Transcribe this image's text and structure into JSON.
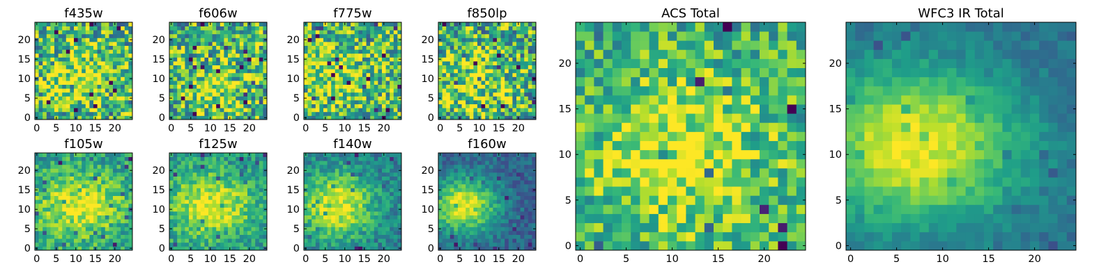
{
  "figure": {
    "background": "#ffffff",
    "colormap": "viridis"
  },
  "chart_data": [
    {
      "id": "f435w",
      "type": "heatmap",
      "title": "f435w",
      "grid": false,
      "xticks": [
        "0",
        "5",
        "10",
        "15",
        "20"
      ],
      "yticks": [
        "0",
        "5",
        "10",
        "15",
        "20"
      ],
      "xlim": [
        -0.5,
        24.5
      ],
      "ylim": [
        -0.5,
        24.5
      ],
      "shape": [
        25,
        25
      ],
      "pattern": {
        "peak_x": 12,
        "peak_y": 10,
        "spread_x": 6,
        "spread_y": 5,
        "peak": 0.9,
        "base": 0.66,
        "noise": 0.38,
        "seed": 11
      }
    },
    {
      "id": "f606w",
      "type": "heatmap",
      "title": "f606w",
      "grid": false,
      "xticks": [
        "0",
        "5",
        "10",
        "15",
        "20"
      ],
      "yticks": [
        "0",
        "5",
        "10",
        "15",
        "20"
      ],
      "xlim": [
        -0.5,
        24.5
      ],
      "ylim": [
        -0.5,
        24.5
      ],
      "shape": [
        25,
        25
      ],
      "pattern": {
        "peak_x": 11,
        "peak_y": 7,
        "spread_x": 6,
        "spread_y": 5,
        "peak": 0.88,
        "base": 0.64,
        "noise": 0.38,
        "seed": 23
      }
    },
    {
      "id": "f775w",
      "type": "heatmap",
      "title": "f775w",
      "grid": false,
      "xticks": [
        "0",
        "5",
        "10",
        "15",
        "20"
      ],
      "yticks": [
        "0",
        "5",
        "10",
        "15",
        "20"
      ],
      "xlim": [
        -0.5,
        24.5
      ],
      "ylim": [
        -0.5,
        24.5
      ],
      "shape": [
        25,
        25
      ],
      "pattern": {
        "peak_x": 6,
        "peak_y": 11,
        "spread_x": 7,
        "spread_y": 5,
        "peak": 0.9,
        "base": 0.66,
        "noise": 0.36,
        "seed": 37
      }
    },
    {
      "id": "f850lp",
      "type": "heatmap",
      "title": "f850lp",
      "grid": false,
      "xticks": [
        "0",
        "5",
        "10",
        "15",
        "20"
      ],
      "yticks": [
        "0",
        "5",
        "10",
        "15",
        "20"
      ],
      "xlim": [
        -0.5,
        24.5
      ],
      "ylim": [
        -0.5,
        24.5
      ],
      "shape": [
        25,
        25
      ],
      "pattern": {
        "peak_x": 9,
        "peak_y": 9,
        "spread_x": 7,
        "spread_y": 6,
        "peak": 0.86,
        "base": 0.64,
        "noise": 0.4,
        "seed": 53
      }
    },
    {
      "id": "f105w",
      "type": "heatmap",
      "title": "f105w",
      "grid": false,
      "xticks": [
        "0",
        "5",
        "10",
        "15",
        "20"
      ],
      "yticks": [
        "0",
        "5",
        "10",
        "15",
        "20"
      ],
      "xlim": [
        -0.5,
        24.5
      ],
      "ylim": [
        -0.5,
        24.5
      ],
      "shape": [
        25,
        25
      ],
      "pattern": {
        "peak_x": 11,
        "peak_y": 11,
        "spread_x": 8,
        "spread_y": 6,
        "peak": 0.96,
        "base": 0.55,
        "noise": 0.2,
        "seed": 71
      }
    },
    {
      "id": "f125w",
      "type": "heatmap",
      "title": "f125w",
      "grid": false,
      "xticks": [
        "0",
        "5",
        "10",
        "15",
        "20"
      ],
      "yticks": [
        "0",
        "5",
        "10",
        "15",
        "20"
      ],
      "xlim": [
        -0.5,
        24.5
      ],
      "ylim": [
        -0.5,
        24.5
      ],
      "shape": [
        25,
        25
      ],
      "pattern": {
        "peak_x": 10,
        "peak_y": 11,
        "spread_x": 8,
        "spread_y": 6,
        "peak": 0.96,
        "base": 0.52,
        "noise": 0.18,
        "seed": 89
      }
    },
    {
      "id": "f140w",
      "type": "heatmap",
      "title": "f140w",
      "grid": false,
      "xticks": [
        "0",
        "5",
        "10",
        "15",
        "20"
      ],
      "yticks": [
        "0",
        "5",
        "10",
        "15",
        "20"
      ],
      "xlim": [
        -0.5,
        24.5
      ],
      "ylim": [
        -0.5,
        24.5
      ],
      "shape": [
        25,
        25
      ],
      "pattern": {
        "peak_x": 8,
        "peak_y": 11,
        "spread_x": 7,
        "spread_y": 6,
        "peak": 0.97,
        "base": 0.42,
        "noise": 0.16,
        "seed": 97
      }
    },
    {
      "id": "f160w",
      "type": "heatmap",
      "title": "f160w",
      "grid": false,
      "xticks": [
        "0",
        "5",
        "10",
        "15",
        "20"
      ],
      "yticks": [
        "0",
        "5",
        "10",
        "15",
        "20"
      ],
      "xlim": [
        -0.5,
        24.5
      ],
      "ylim": [
        -0.5,
        24.5
      ],
      "shape": [
        25,
        25
      ],
      "pattern": {
        "peak_x": 6,
        "peak_y": 11,
        "spread_x": 6,
        "spread_y": 5,
        "peak": 0.98,
        "base": 0.32,
        "noise": 0.13,
        "seed": 131
      }
    },
    {
      "id": "acs-total",
      "type": "heatmap",
      "title": "ACS Total",
      "grid": false,
      "xticks": [
        "0",
        "5",
        "10",
        "15",
        "20"
      ],
      "yticks": [
        "0",
        "5",
        "10",
        "15",
        "20"
      ],
      "xlim": [
        -0.5,
        24.5
      ],
      "ylim": [
        -0.5,
        24.5
      ],
      "shape": [
        25,
        25
      ],
      "pattern": {
        "peak_x": 11,
        "peak_y": 10,
        "spread_x": 8,
        "spread_y": 7,
        "peak": 0.92,
        "base": 0.6,
        "noise": 0.26,
        "seed": 149
      }
    },
    {
      "id": "wfc3-ir-total",
      "type": "heatmap",
      "title": "WFC3 IR Total",
      "grid": false,
      "xticks": [
        "0",
        "5",
        "10",
        "15",
        "20"
      ],
      "yticks": [
        "0",
        "5",
        "10",
        "15",
        "20"
      ],
      "xlim": [
        -0.5,
        24.5
      ],
      "ylim": [
        -0.5,
        24.5
      ],
      "shape": [
        25,
        25
      ],
      "pattern": {
        "peak_x": 7,
        "peak_y": 11,
        "spread_x": 8,
        "spread_y": 6,
        "peak": 0.99,
        "base": 0.36,
        "noise": 0.08,
        "seed": 173
      }
    }
  ]
}
